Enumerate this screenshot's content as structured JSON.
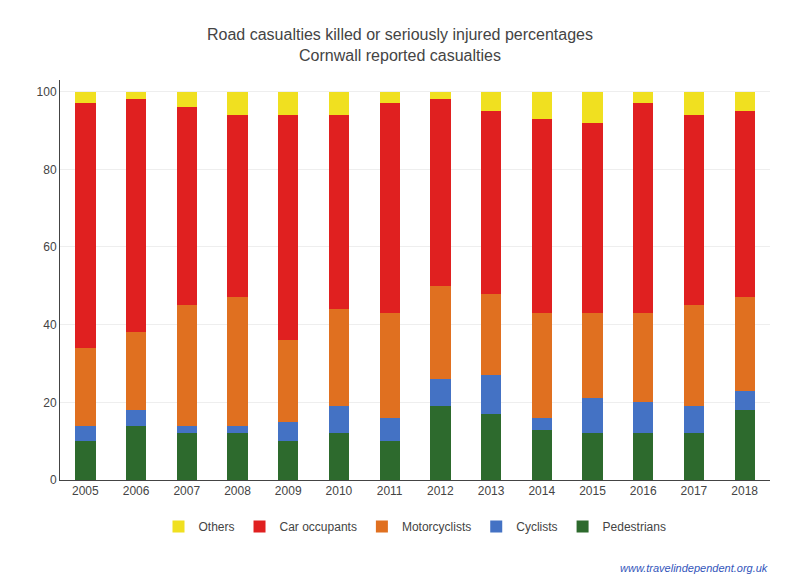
{
  "chart_data": {
    "type": "bar",
    "stacked": true,
    "title": "Road casualties killed or seriously injured percentages",
    "subtitle": "Cornwall reported casualties",
    "categories": [
      "2005",
      "2006",
      "2007",
      "2008",
      "2009",
      "2010",
      "2011",
      "2012",
      "2013",
      "2014",
      "2015",
      "2016",
      "2017",
      "2018"
    ],
    "series": [
      {
        "name": "Pedestrians",
        "color": "#2d6a2d",
        "values": [
          10,
          14,
          12,
          12,
          10,
          12,
          10,
          19,
          17,
          13,
          12,
          12,
          12,
          18
        ]
      },
      {
        "name": "Cyclists",
        "color": "#4472c4",
        "values": [
          4,
          4,
          2,
          2,
          5,
          7,
          6,
          7,
          10,
          3,
          9,
          8,
          7,
          5
        ]
      },
      {
        "name": "Motorcyclists",
        "color": "#e07020",
        "values": [
          20,
          20,
          31,
          33,
          21,
          25,
          27,
          24,
          21,
          27,
          22,
          23,
          26,
          24
        ]
      },
      {
        "name": "Car occupants",
        "color": "#e02020",
        "values": [
          63,
          60,
          51,
          47,
          58,
          50,
          54,
          48,
          47,
          50,
          49,
          54,
          49,
          48
        ]
      },
      {
        "name": "Others",
        "color": "#f0e020",
        "values": [
          3,
          2,
          4,
          6,
          6,
          6,
          3,
          2,
          5,
          7,
          8,
          3,
          6,
          5
        ]
      }
    ],
    "ylim": [
      0,
      103
    ],
    "yticks": [
      0,
      20,
      40,
      60,
      80,
      100
    ],
    "grid": true,
    "legend": "bottom",
    "annotations": [
      "www.travelindependent.org.uk"
    ]
  }
}
